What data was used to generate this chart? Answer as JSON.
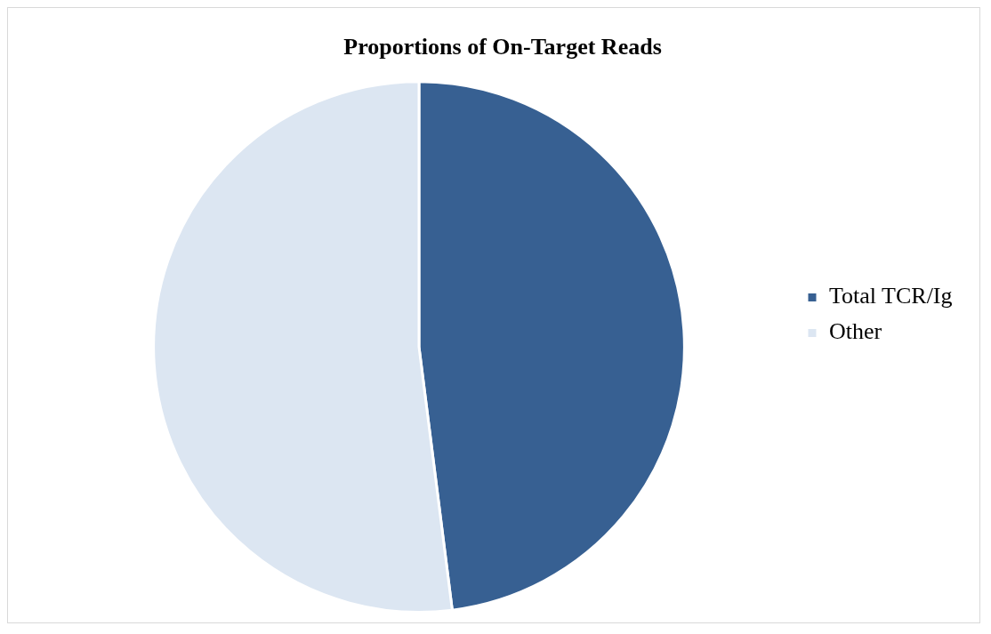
{
  "chart_data": {
    "type": "pie",
    "title": "Proportions of On-Target Reads",
    "categories": [
      "Total TCR/Ig",
      "Other"
    ],
    "values": [
      48,
      52
    ],
    "colors": [
      "#376092",
      "#dce6f2"
    ],
    "legend": "right"
  }
}
